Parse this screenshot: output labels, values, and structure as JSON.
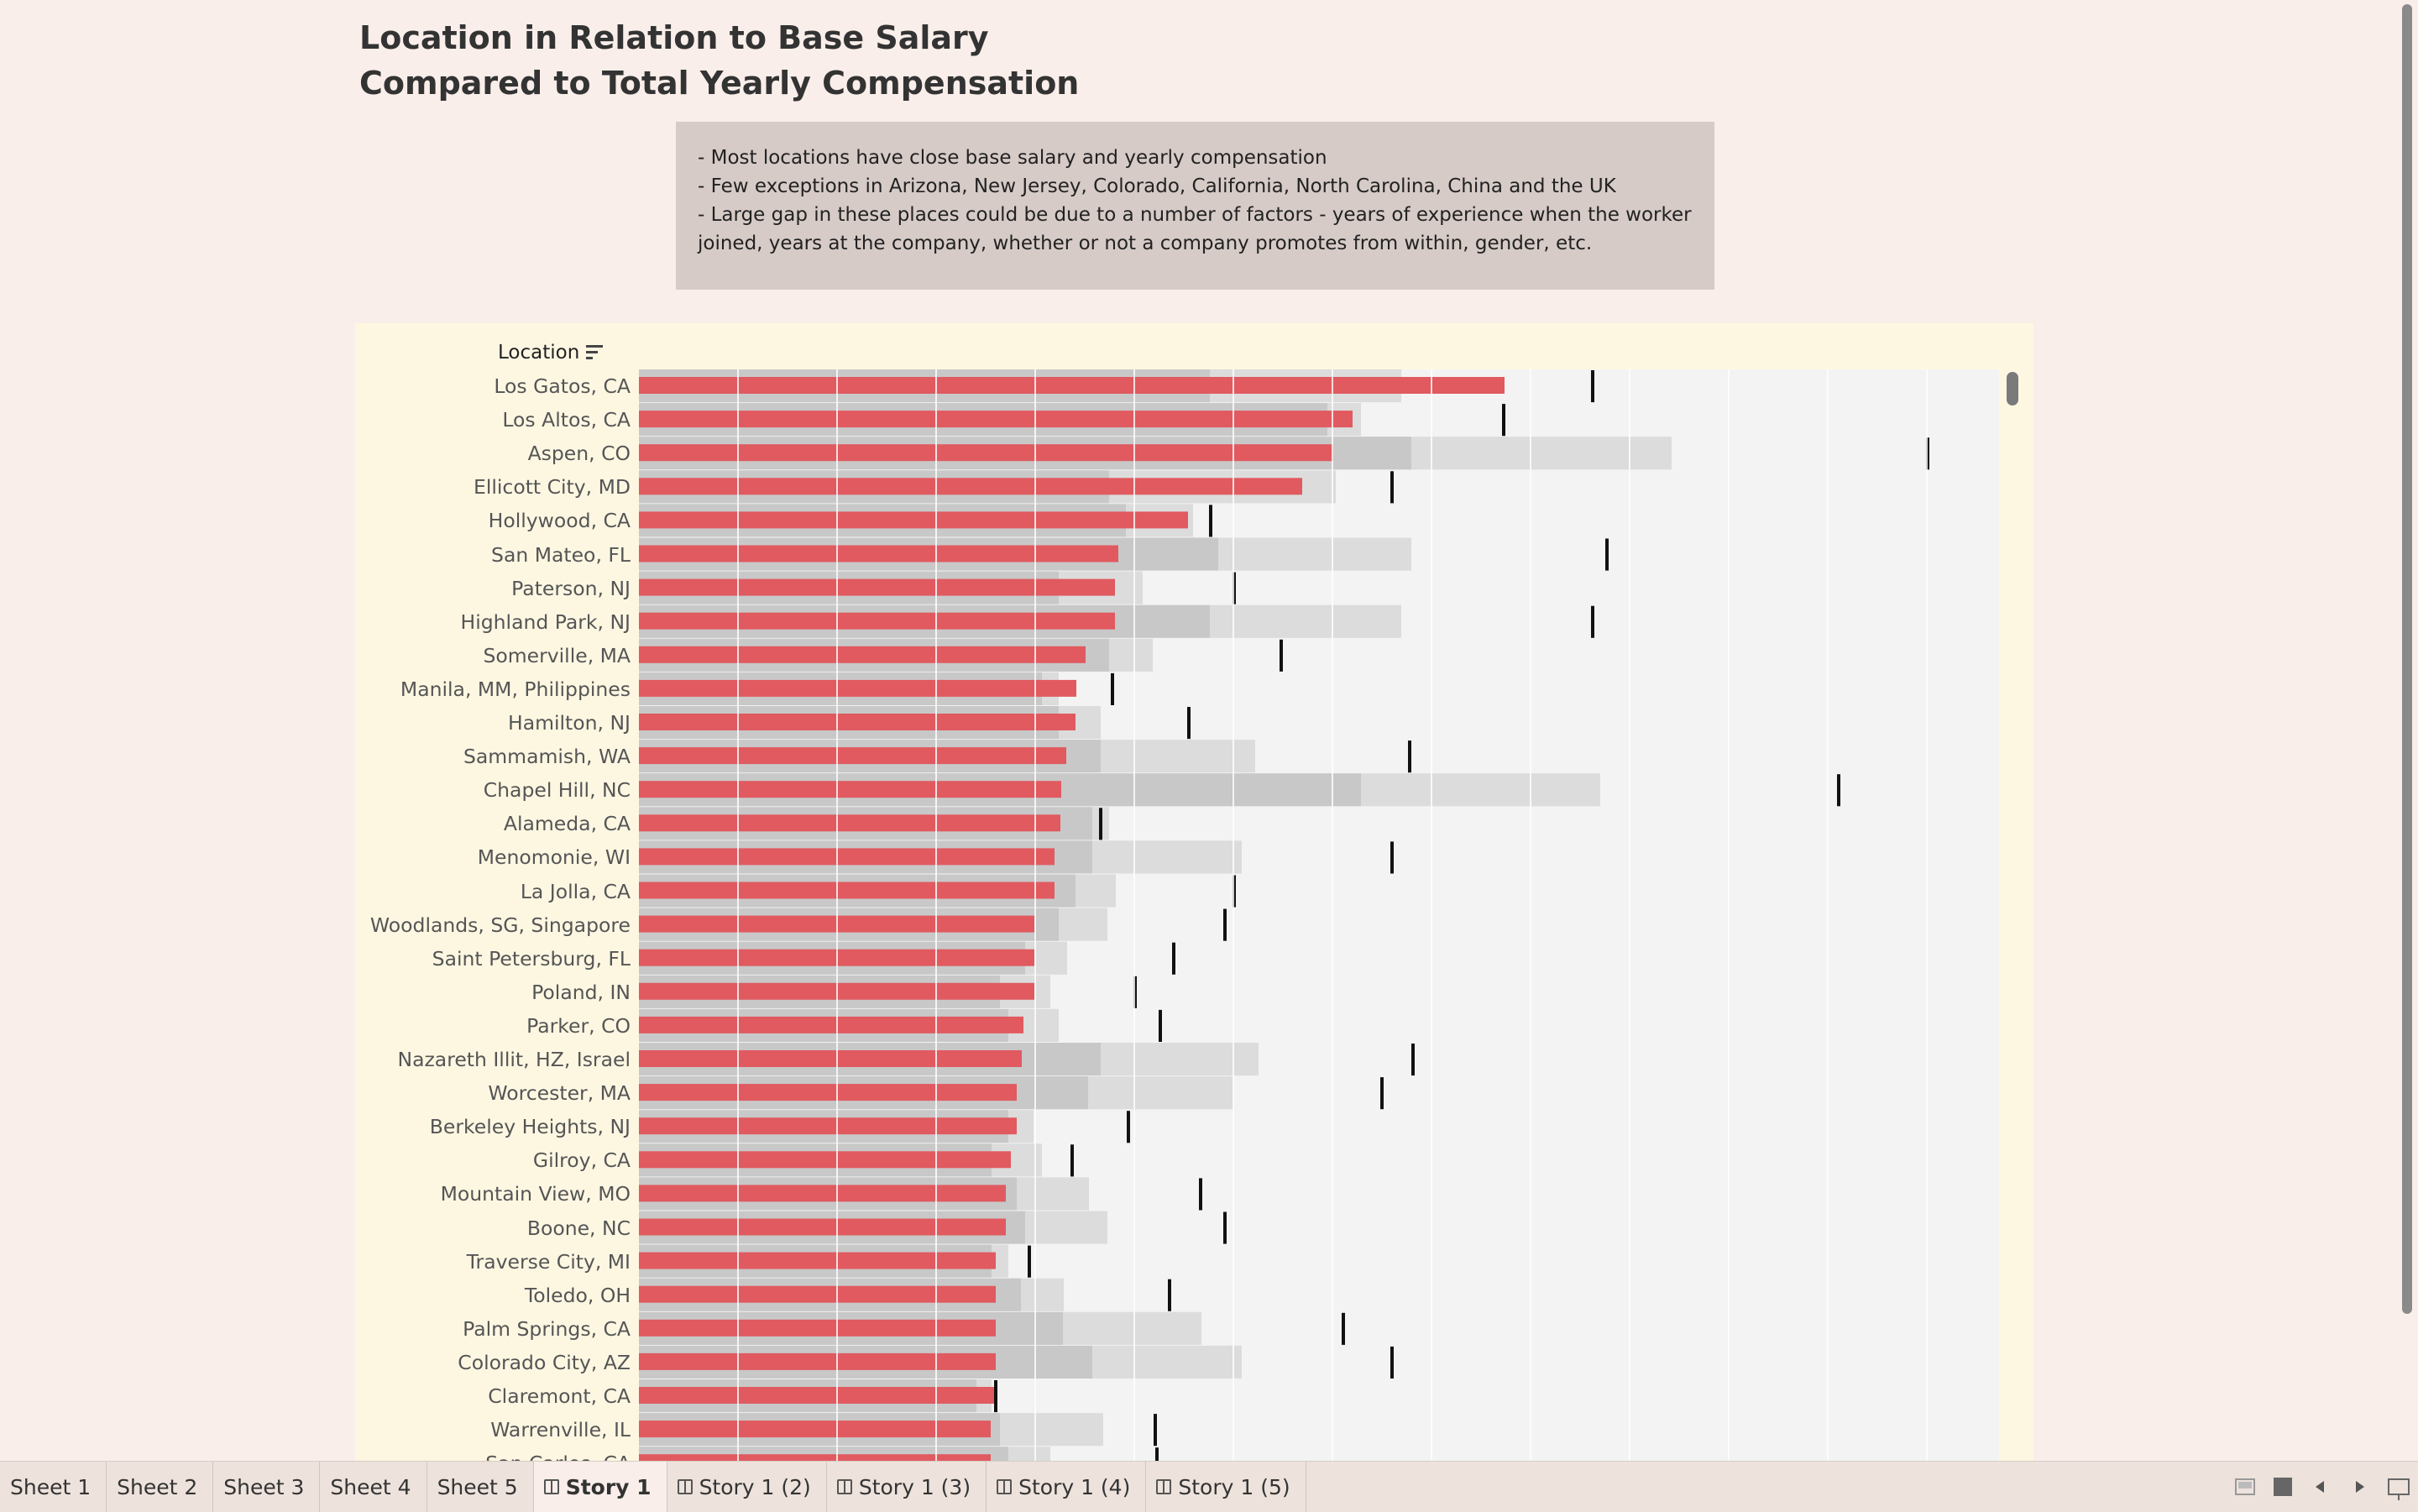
{
  "title": {
    "line1": "Location in Relation to Base Salary",
    "line2": "Compared to Total Yearly Compensation"
  },
  "caption": {
    "lines": [
      "- Most locations have close base salary and yearly compensation",
      "- Few exceptions in Arizona, New Jersey, Colorado, California, North Carolina, China and the UK",
      "- Large gap in these places could be due to a number of factors - years of experience when the worker",
      "joined, years at the company, whether or not a company promotes from within, gender, etc."
    ]
  },
  "chart_data": {
    "type": "bar",
    "dimension_header": "Location",
    "sort_icon": "sort-descending-icon",
    "colors": {
      "base_salary": "#e05a60",
      "band_dark": "#c8c8c8",
      "band_light": "#dcdcdc",
      "reference": "#111111",
      "background": "#f3f3f3"
    },
    "gridlines": true,
    "categories": [
      "Los Gatos, CA",
      "Los Altos, CA",
      "Aspen, CO",
      "Ellicott City, MD",
      "Hollywood, CA",
      "San Mateo, FL",
      "Paterson, NJ",
      "Highland Park, NJ",
      "Somerville, MA",
      "Manila, MM, Philippines",
      "Hamilton, NJ",
      "Sammamish, WA",
      "Chapel Hill, NC",
      "Alameda, CA",
      "Menomonie, WI",
      "La Jolla, CA",
      "Woodlands, SG, Singapore",
      "Saint Petersburg, FL",
      "Poland, IN",
      "Parker, CO",
      "Nazareth Illit, HZ, Israel",
      "Worcester, MA",
      "Berkeley Heights, NJ",
      "Gilroy, CA",
      "Mountain View, MO",
      "Boone, NC",
      "Traverse City, MI",
      "Toledo, OH",
      "Palm Springs, CA",
      "Colorado City, AZ",
      "Claremont, CA",
      "Warrenville, IL",
      "San Carlos, CA"
    ],
    "base_salary": [
      1031,
      850,
      827,
      790,
      654,
      571,
      567,
      567,
      532,
      521,
      520,
      509,
      503,
      502,
      495,
      495,
      471,
      471,
      471,
      458,
      456,
      450,
      450,
      443,
      437,
      437,
      425,
      425,
      425,
      425,
      425,
      419,
      419
    ],
    "total_comp": [
      1136,
      1030,
      1535,
      897,
      681,
      1153,
      709,
      1136,
      765,
      564,
      655,
      918,
      1429,
      550,
      897,
      709,
      698,
      637,
      591,
      621,
      922,
      885,
      583,
      516,
      669,
      698,
      465,
      632,
      839,
      897,
      425,
      615,
      617
    ],
    "band_dark": [
      680,
      820,
      920,
      560,
      580,
      690,
      500,
      680,
      560,
      480,
      500,
      550,
      860,
      540,
      540,
      520,
      500,
      460,
      430,
      440,
      550,
      535,
      440,
      420,
      450,
      460,
      420,
      455,
      505,
      540,
      402,
      430,
      440
    ],
    "band_light": [
      908,
      860,
      1230,
      830,
      660,
      920,
      600,
      908,
      612,
      500,
      550,
      734,
      1145,
      560,
      718,
      568,
      558,
      510,
      490,
      500,
      738,
      708,
      470,
      480,
      536,
      558,
      440,
      506,
      670,
      718,
      420,
      553,
      490
    ]
  },
  "tabs": [
    {
      "label": "Sheet 1",
      "type": "sheet"
    },
    {
      "label": "Sheet 2",
      "type": "sheet"
    },
    {
      "label": "Sheet 3",
      "type": "sheet"
    },
    {
      "label": "Sheet 4",
      "type": "sheet"
    },
    {
      "label": "Sheet 5",
      "type": "sheet"
    },
    {
      "label": "Story 1",
      "type": "story",
      "active": true
    },
    {
      "label": "Story 1 (2)",
      "type": "story"
    },
    {
      "label": "Story 1 (3)",
      "type": "story"
    },
    {
      "label": "Story 1 (4)",
      "type": "story"
    },
    {
      "label": "Story 1 (5)",
      "type": "story"
    }
  ]
}
